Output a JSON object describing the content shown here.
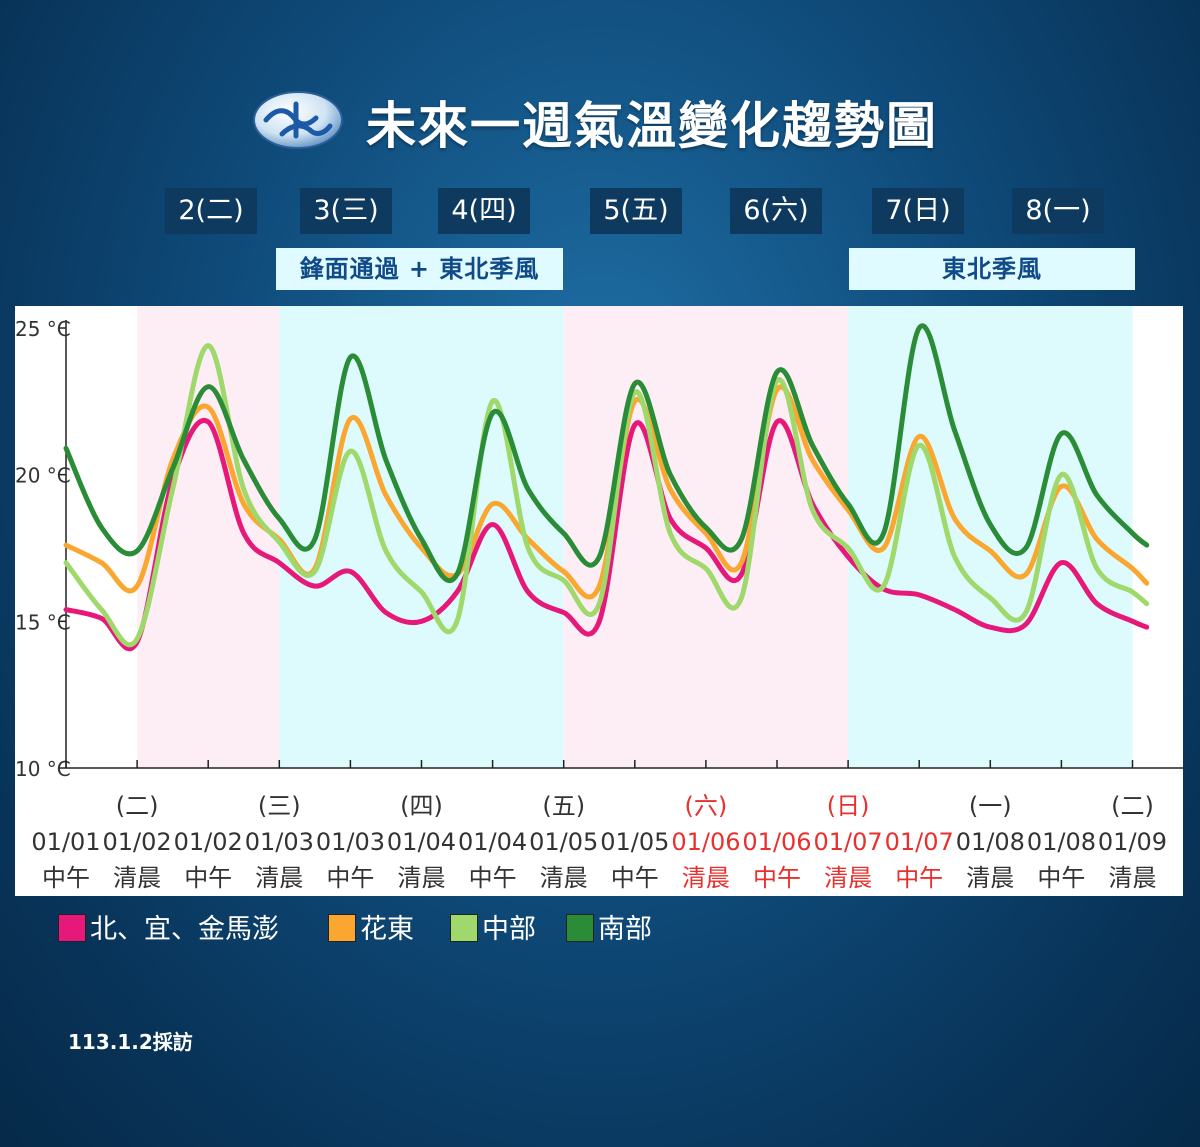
{
  "header": {
    "title": "未來一週氣溫變化趨勢圖"
  },
  "days": [
    "2(二)",
    "3(三)",
    "4(四)",
    "5(五)",
    "6(六)",
    "7(日)",
    "8(一)"
  ],
  "periods": [
    {
      "label": "鋒面通過 + 東北季風"
    },
    {
      "label": "東北季風"
    }
  ],
  "footnote": "113.1.2採訪",
  "colors": {
    "north": "#e6197a",
    "huadong": "#f9a730",
    "central": "#9fd86b",
    "south": "#2a8c36",
    "bg_pink": "#fdeef5",
    "bg_cyan": "#ddfbfd",
    "weekend_red": "#e8302e"
  },
  "chart_data": {
    "type": "line",
    "ylabel_ticks": [
      "25 °C",
      "20 °C",
      "15 °C",
      "10 °C"
    ],
    "ylim": [
      10,
      25
    ],
    "x": [
      "01/01 中午",
      "01/02 清晨",
      "01/02 中午",
      "01/03 清晨",
      "01/03 中午",
      "01/04 清晨",
      "01/04 中午",
      "01/05 清晨",
      "01/05 中午",
      "01/06 清晨",
      "01/06 中午",
      "01/07 清晨",
      "01/07 中午",
      "01/08 清晨",
      "01/08 中午",
      "01/09 清晨"
    ],
    "x_labels": [
      {
        "weekday": "",
        "date": "01/01",
        "time": "中午",
        "weekend": false
      },
      {
        "weekday": "(二)",
        "date": "01/02",
        "time": "清晨",
        "weekend": false
      },
      {
        "weekday": "",
        "date": "01/02",
        "time": "中午",
        "weekend": false
      },
      {
        "weekday": "(三)",
        "date": "01/03",
        "time": "清晨",
        "weekend": false
      },
      {
        "weekday": "",
        "date": "01/03",
        "time": "中午",
        "weekend": false
      },
      {
        "weekday": "(四)",
        "date": "01/04",
        "time": "清晨",
        "weekend": false
      },
      {
        "weekday": "",
        "date": "01/04",
        "time": "中午",
        "weekend": false
      },
      {
        "weekday": "(五)",
        "date": "01/05",
        "time": "清晨",
        "weekend": false
      },
      {
        "weekday": "",
        "date": "01/05",
        "time": "中午",
        "weekend": false
      },
      {
        "weekday": "(六)",
        "date": "01/06",
        "time": "清晨",
        "weekend": true
      },
      {
        "weekday": "",
        "date": "01/06",
        "time": "中午",
        "weekend": true
      },
      {
        "weekday": "(日)",
        "date": "01/07",
        "time": "清晨",
        "weekend": true
      },
      {
        "weekday": "",
        "date": "01/07",
        "time": "中午",
        "weekend": true
      },
      {
        "weekday": "(一)",
        "date": "01/08",
        "time": "清晨",
        "weekend": false
      },
      {
        "weekday": "",
        "date": "01/08",
        "time": "中午",
        "weekend": false
      },
      {
        "weekday": "(二)",
        "date": "01/09",
        "time": "清晨",
        "weekend": false
      }
    ],
    "bands": [
      {
        "from": 1,
        "to": 3,
        "color": "pink"
      },
      {
        "from": 3,
        "to": 7,
        "color": "cyan"
      },
      {
        "from": 7,
        "to": 11,
        "color": "pink"
      },
      {
        "from": 11,
        "to": 15,
        "color": "cyan"
      }
    ],
    "series": [
      {
        "name": "北、宜、金馬澎",
        "key": "north",
        "points": [
          [
            0,
            15.4
          ],
          [
            0.5,
            15.1
          ],
          [
            1,
            14.3
          ],
          [
            1.5,
            19.8
          ],
          [
            2,
            21.8
          ],
          [
            2.5,
            18.0
          ],
          [
            3,
            17.0
          ],
          [
            3.5,
            16.2
          ],
          [
            4,
            16.7
          ],
          [
            4.5,
            15.3
          ],
          [
            5,
            15.0
          ],
          [
            5.5,
            16.0
          ],
          [
            6,
            18.3
          ],
          [
            6.5,
            16.0
          ],
          [
            7,
            15.3
          ],
          [
            7.5,
            15.0
          ],
          [
            8,
            21.7
          ],
          [
            8.5,
            18.5
          ],
          [
            9,
            17.5
          ],
          [
            9.5,
            16.6
          ],
          [
            10,
            21.8
          ],
          [
            10.5,
            19.0
          ],
          [
            11,
            17.2
          ],
          [
            11.5,
            16.1
          ],
          [
            12,
            15.9
          ],
          [
            12.5,
            15.4
          ],
          [
            13,
            14.8
          ],
          [
            13.5,
            14.9
          ],
          [
            14,
            17.0
          ],
          [
            14.5,
            15.6
          ],
          [
            15,
            15.0
          ],
          [
            15.2,
            14.8
          ]
        ]
      },
      {
        "name": "花東",
        "key": "huadong",
        "points": [
          [
            0,
            17.6
          ],
          [
            0.5,
            17.0
          ],
          [
            1,
            16.2
          ],
          [
            1.5,
            20.5
          ],
          [
            2,
            22.3
          ],
          [
            2.5,
            19.0
          ],
          [
            3,
            17.8
          ],
          [
            3.5,
            16.8
          ],
          [
            4,
            21.9
          ],
          [
            4.5,
            19.3
          ],
          [
            5,
            17.5
          ],
          [
            5.5,
            16.6
          ],
          [
            6,
            19.0
          ],
          [
            6.5,
            17.8
          ],
          [
            7,
            16.7
          ],
          [
            7.5,
            16.2
          ],
          [
            8,
            22.5
          ],
          [
            8.5,
            19.5
          ],
          [
            9,
            18.0
          ],
          [
            9.5,
            17.0
          ],
          [
            10,
            22.9
          ],
          [
            10.5,
            20.5
          ],
          [
            11,
            18.8
          ],
          [
            11.5,
            17.5
          ],
          [
            12,
            21.3
          ],
          [
            12.5,
            18.5
          ],
          [
            13,
            17.4
          ],
          [
            13.5,
            16.6
          ],
          [
            14,
            19.6
          ],
          [
            14.5,
            17.8
          ],
          [
            15,
            16.8
          ],
          [
            15.2,
            16.3
          ]
        ]
      },
      {
        "name": "中部",
        "key": "central",
        "points": [
          [
            0,
            17.0
          ],
          [
            0.5,
            15.4
          ],
          [
            1,
            14.4
          ],
          [
            1.5,
            19.5
          ],
          [
            2,
            24.4
          ],
          [
            2.5,
            19.5
          ],
          [
            3,
            17.7
          ],
          [
            3.5,
            16.7
          ],
          [
            4,
            20.8
          ],
          [
            4.5,
            17.4
          ],
          [
            5,
            16.0
          ],
          [
            5.5,
            15.0
          ],
          [
            6,
            22.5
          ],
          [
            6.5,
            17.5
          ],
          [
            7,
            16.4
          ],
          [
            7.5,
            15.6
          ],
          [
            8,
            22.8
          ],
          [
            8.5,
            18.0
          ],
          [
            9,
            16.8
          ],
          [
            9.5,
            15.8
          ],
          [
            10,
            23.2
          ],
          [
            10.5,
            18.8
          ],
          [
            11,
            17.5
          ],
          [
            11.5,
            16.2
          ],
          [
            12,
            21.0
          ],
          [
            12.5,
            17.2
          ],
          [
            13,
            15.8
          ],
          [
            13.5,
            15.3
          ],
          [
            14,
            20.0
          ],
          [
            14.5,
            16.8
          ],
          [
            15,
            16.0
          ],
          [
            15.2,
            15.6
          ]
        ]
      },
      {
        "name": "南部",
        "key": "south",
        "points": [
          [
            0,
            20.9
          ],
          [
            0.5,
            18.2
          ],
          [
            1,
            17.4
          ],
          [
            1.5,
            20.2
          ],
          [
            2,
            23.0
          ],
          [
            2.5,
            20.5
          ],
          [
            3,
            18.5
          ],
          [
            3.5,
            17.8
          ],
          [
            4,
            24.0
          ],
          [
            4.5,
            20.5
          ],
          [
            5,
            17.8
          ],
          [
            5.5,
            16.6
          ],
          [
            6,
            22.1
          ],
          [
            6.5,
            19.5
          ],
          [
            7,
            18.0
          ],
          [
            7.5,
            17.2
          ],
          [
            8,
            23.1
          ],
          [
            8.5,
            20.0
          ],
          [
            9,
            18.2
          ],
          [
            9.5,
            17.8
          ],
          [
            10,
            23.5
          ],
          [
            10.5,
            21.0
          ],
          [
            11,
            19.0
          ],
          [
            11.5,
            18.0
          ],
          [
            12,
            25.0
          ],
          [
            12.5,
            21.5
          ],
          [
            13,
            18.3
          ],
          [
            13.5,
            17.5
          ],
          [
            14,
            21.4
          ],
          [
            14.5,
            19.3
          ],
          [
            15,
            18.0
          ],
          [
            15.2,
            17.6
          ]
        ]
      }
    ]
  }
}
